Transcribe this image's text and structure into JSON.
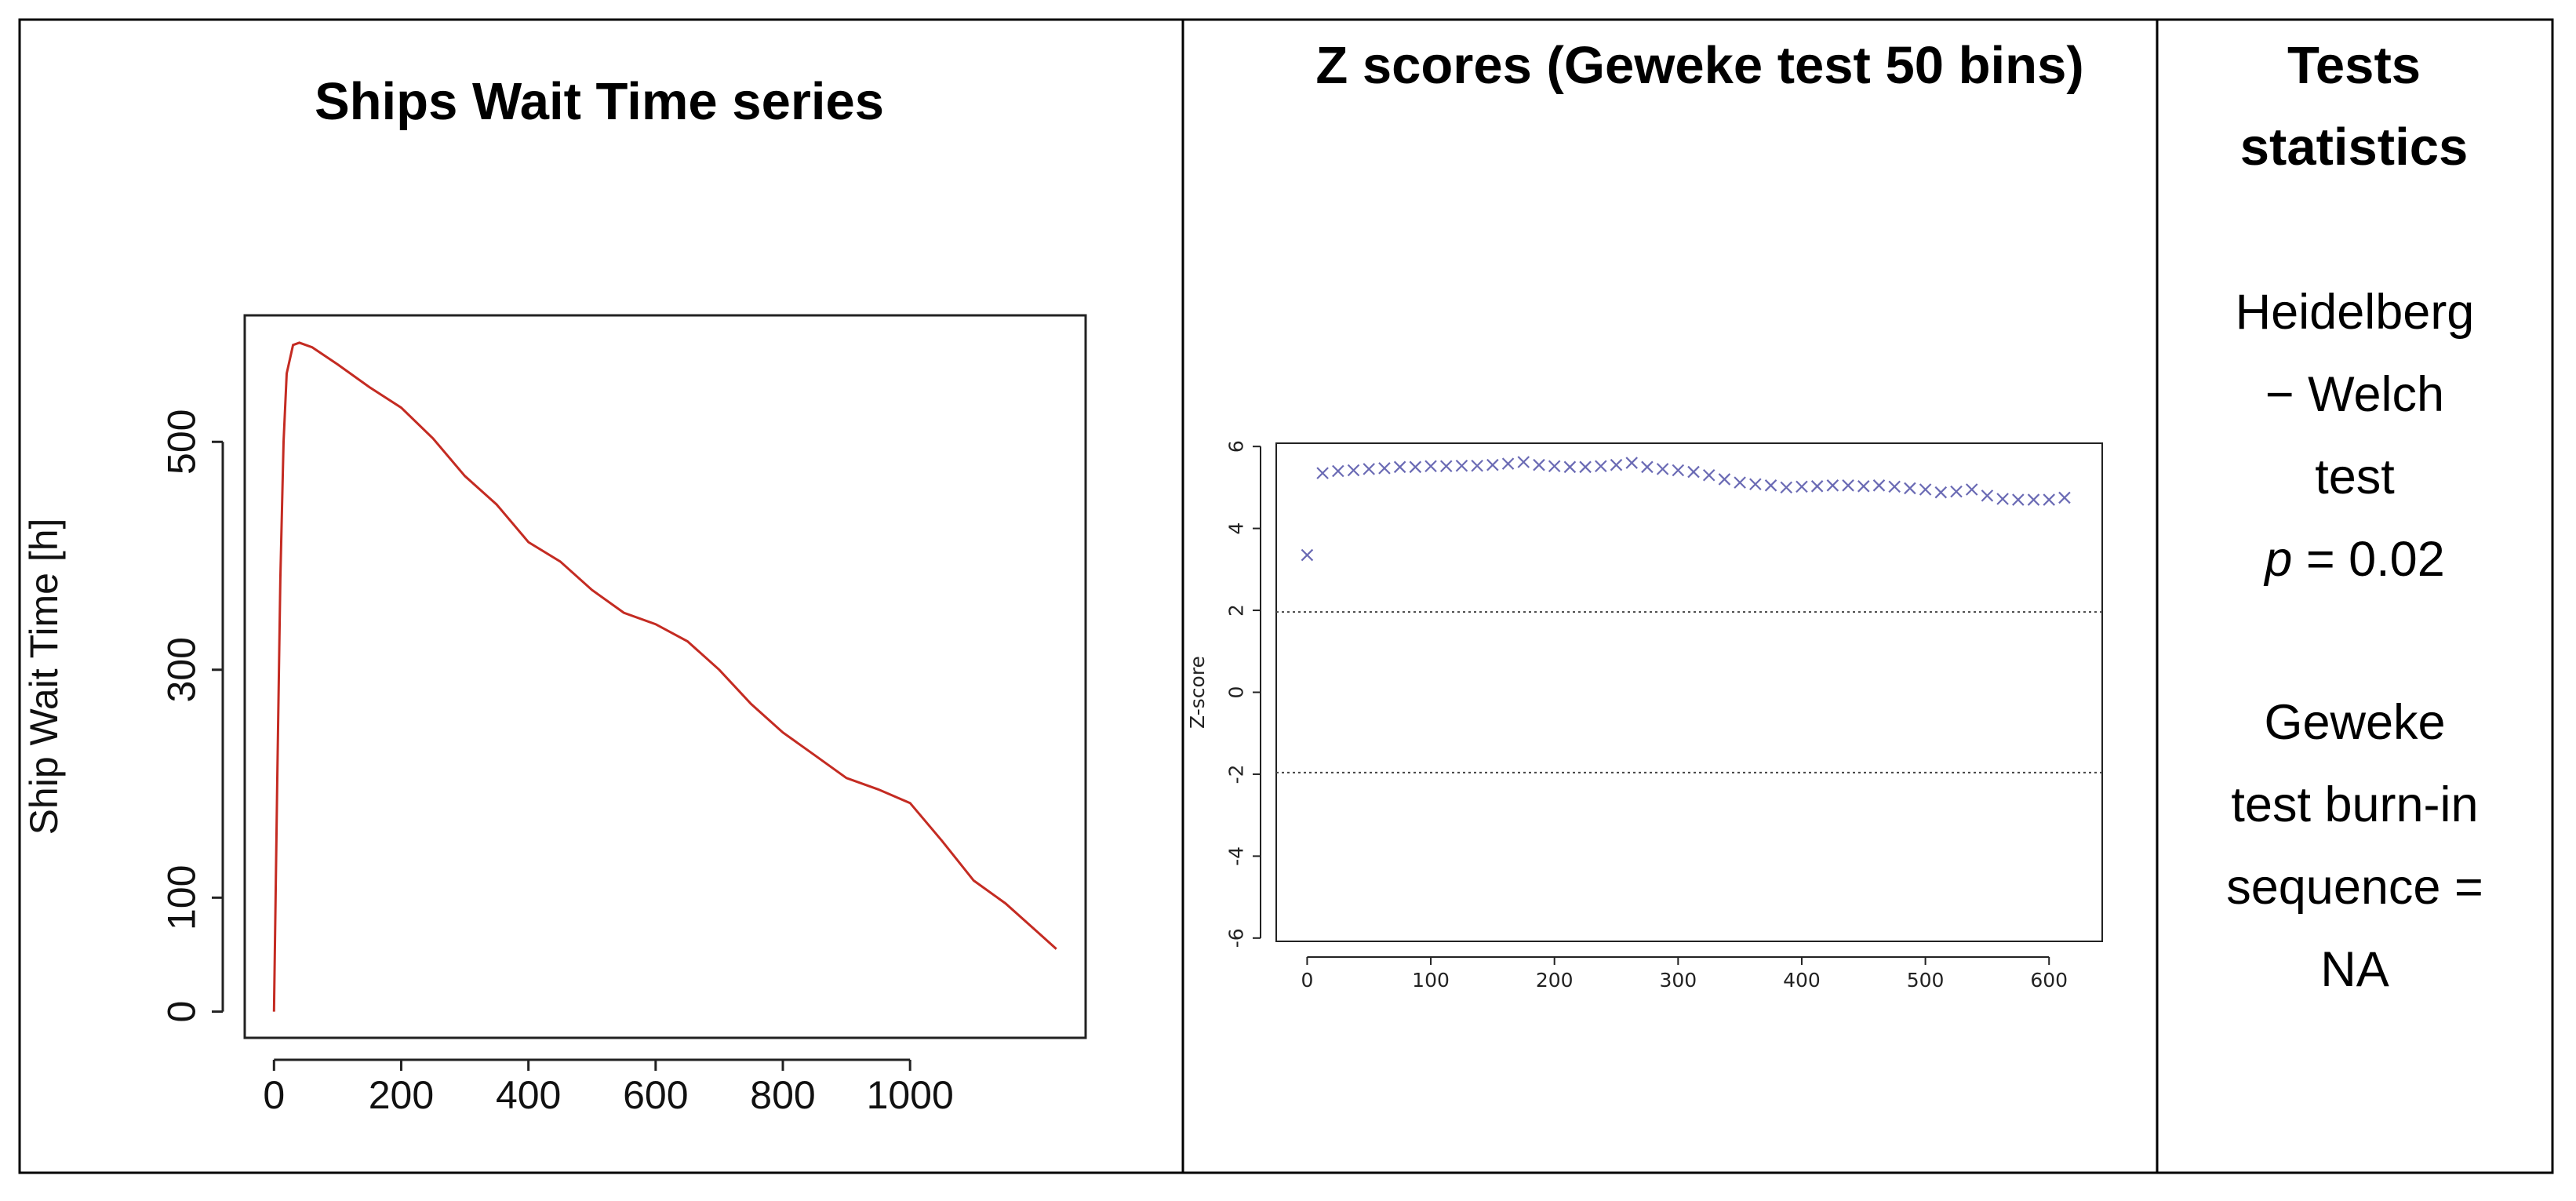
{
  "headers": [
    "Ships Wait Time series",
    "Z scores (Geweke test 50 bins)",
    "Tests statistics"
  ],
  "chart_data": [
    {
      "type": "line",
      "ylabel": "Ship Wait Time [h]",
      "color": "#c42b22",
      "x": [
        0,
        5,
        10,
        15,
        20,
        30,
        40,
        60,
        100,
        150,
        200,
        250,
        300,
        350,
        400,
        450,
        500,
        550,
        600,
        650,
        700,
        750,
        800,
        850,
        900,
        950,
        1000,
        1050,
        1100,
        1150,
        1200,
        1230
      ],
      "values": [
        0,
        200,
        380,
        500,
        560,
        585,
        587,
        583,
        568,
        548,
        530,
        503,
        470,
        445,
        412,
        395,
        370,
        350,
        340,
        325,
        300,
        270,
        245,
        225,
        205,
        195,
        183,
        150,
        115,
        95,
        70,
        55
      ],
      "xlim": [
        -46,
        1276
      ],
      "ylim": [
        -23,
        611
      ],
      "xticks": [
        0,
        200,
        400,
        600,
        800,
        1000
      ],
      "yticks": [
        0,
        100,
        300,
        500
      ]
    },
    {
      "type": "scatter",
      "ylabel": "Z-score",
      "color": "#6a6ab4",
      "x": [
        0,
        12.5,
        25,
        37.5,
        50,
        62.5,
        75,
        87.5,
        100,
        112.5,
        125,
        137.5,
        150,
        162.5,
        175,
        187.5,
        200,
        212.5,
        225,
        237.5,
        250,
        262.5,
        275,
        287.5,
        300,
        312.5,
        325,
        337.5,
        350,
        362.5,
        375,
        387.5,
        400,
        412.5,
        425,
        437.5,
        450,
        462.5,
        475,
        487.5,
        500,
        512.5,
        525,
        537.5,
        550,
        562.5,
        575,
        587.5,
        600,
        612.5
      ],
      "values": [
        3.35,
        5.35,
        5.4,
        5.42,
        5.45,
        5.47,
        5.5,
        5.5,
        5.52,
        5.52,
        5.53,
        5.53,
        5.55,
        5.58,
        5.62,
        5.55,
        5.52,
        5.5,
        5.5,
        5.52,
        5.55,
        5.6,
        5.5,
        5.45,
        5.42,
        5.38,
        5.3,
        5.2,
        5.12,
        5.08,
        5.05,
        5.0,
        5.02,
        5.03,
        5.05,
        5.05,
        5.03,
        5.05,
        5.02,
        4.98,
        4.95,
        4.88,
        4.9,
        4.95,
        4.8,
        4.72,
        4.7,
        4.7,
        4.7,
        4.75
      ],
      "reference_lines": [
        1.96,
        -1.96
      ],
      "xlim": [
        -25,
        643
      ],
      "ylim": [
        -6.08,
        6.08
      ],
      "xticks": [
        0,
        100,
        200,
        300,
        400,
        500,
        600
      ],
      "yticks": [
        -6,
        -4,
        -2,
        0,
        2,
        4,
        6
      ]
    }
  ],
  "statistics": [
    {
      "lines": [
        "Heidelberg",
        "− Welch",
        "test"
      ],
      "variable": "p",
      "result": "= 0.02"
    },
    {
      "lines": [
        "Geweke",
        "test burn-in",
        "sequence =",
        "NA"
      ]
    }
  ]
}
